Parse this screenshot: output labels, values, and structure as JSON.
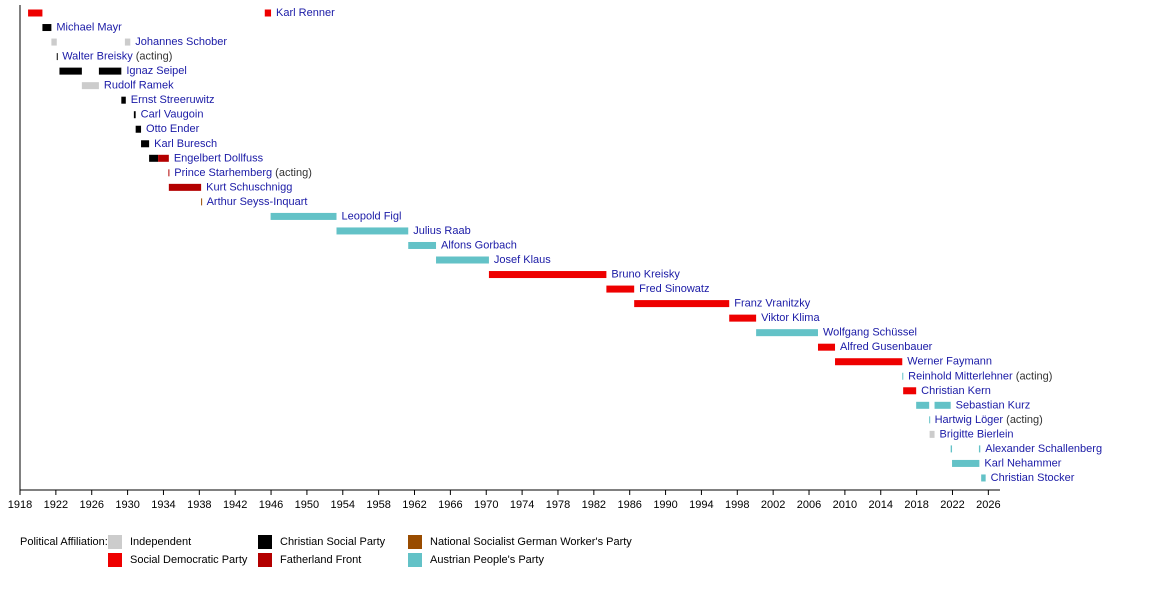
{
  "chart_data": {
    "type": "timeline",
    "xlim": [
      1918,
      2027.3
    ],
    "xticks": [
      1918,
      1922,
      1926,
      1930,
      1934,
      1938,
      1942,
      1946,
      1950,
      1954,
      1958,
      1962,
      1966,
      1970,
      1974,
      1978,
      1982,
      1986,
      1990,
      1994,
      1998,
      2002,
      2006,
      2010,
      2014,
      2018,
      2022,
      2026
    ],
    "legend_title": "Political Affiliation:",
    "parties": [
      {
        "name": "Independent",
        "color": "#cccccc"
      },
      {
        "name": "Social Democratic Party",
        "color": "#ee0000"
      },
      {
        "name": "Christian Social Party",
        "color": "#000000"
      },
      {
        "name": "Fatherland Front",
        "color": "#b30000"
      },
      {
        "name": "National Socialist German Worker's Party",
        "color": "#994c00"
      },
      {
        "name": "Austrian People's Party",
        "color": "#63c2c7"
      }
    ],
    "rows": [
      {
        "name": "Karl Renner",
        "terms": [
          {
            "start": 1918.9,
            "end": 1920.5,
            "party": 1
          },
          {
            "start": 1945.3,
            "end": 1946.0,
            "party": 1
          }
        ]
      },
      {
        "name": "Michael Mayr",
        "terms": [
          {
            "start": 1920.5,
            "end": 1921.5,
            "party": 2
          }
        ]
      },
      {
        "name": "Johannes Schober",
        "terms": [
          {
            "start": 1921.5,
            "end": 1922.1,
            "party": 0
          },
          {
            "start": 1929.7,
            "end": 1930.3,
            "party": 0
          }
        ]
      },
      {
        "name": "Walter Breisky",
        "note": "(acting)",
        "terms": [
          {
            "start": 1922.1,
            "end": 1922.15,
            "party": 2
          }
        ]
      },
      {
        "name": "Ignaz Seipel",
        "terms": [
          {
            "start": 1922.4,
            "end": 1924.9,
            "party": 2
          },
          {
            "start": 1926.8,
            "end": 1929.3,
            "party": 2
          }
        ]
      },
      {
        "name": "Rudolf Ramek",
        "terms": [
          {
            "start": 1924.9,
            "end": 1926.8,
            "party": 0
          }
        ]
      },
      {
        "name": "Ernst Streeruwitz",
        "terms": [
          {
            "start": 1929.3,
            "end": 1929.8,
            "party": 2
          }
        ]
      },
      {
        "name": "Carl Vaugoin",
        "terms": [
          {
            "start": 1930.7,
            "end": 1930.9,
            "party": 2
          }
        ]
      },
      {
        "name": "Otto Ender",
        "terms": [
          {
            "start": 1930.9,
            "end": 1931.5,
            "party": 2
          }
        ]
      },
      {
        "name": "Karl Buresch",
        "terms": [
          {
            "start": 1931.5,
            "end": 1932.4,
            "party": 2
          }
        ]
      },
      {
        "name": "Engelbert Dollfuss",
        "terms": [
          {
            "start": 1932.4,
            "end": 1933.4,
            "party": 2
          },
          {
            "start": 1933.4,
            "end": 1934.6,
            "party": 3
          }
        ]
      },
      {
        "name": "Prince Starhemberg",
        "note": "(acting)",
        "terms": [
          {
            "start": 1934.55,
            "end": 1934.65,
            "party": 3
          }
        ]
      },
      {
        "name": "Kurt Schuschnigg",
        "terms": [
          {
            "start": 1934.6,
            "end": 1938.2,
            "party": 3
          }
        ]
      },
      {
        "name": "Arthur Seyss-Inquart",
        "terms": [
          {
            "start": 1938.2,
            "end": 1938.25,
            "party": 4
          }
        ]
      },
      {
        "name": "Leopold Figl",
        "terms": [
          {
            "start": 1945.95,
            "end": 1953.3,
            "party": 5
          }
        ]
      },
      {
        "name": "Julius Raab",
        "terms": [
          {
            "start": 1953.3,
            "end": 1961.3,
            "party": 5
          }
        ]
      },
      {
        "name": "Alfons Gorbach",
        "terms": [
          {
            "start": 1961.3,
            "end": 1964.4,
            "party": 5
          }
        ]
      },
      {
        "name": "Josef Klaus",
        "terms": [
          {
            "start": 1964.4,
            "end": 1970.3,
            "party": 5
          }
        ]
      },
      {
        "name": "Bruno Kreisky",
        "terms": [
          {
            "start": 1970.3,
            "end": 1983.4,
            "party": 1
          }
        ]
      },
      {
        "name": "Fred Sinowatz",
        "terms": [
          {
            "start": 1983.4,
            "end": 1986.5,
            "party": 1
          }
        ]
      },
      {
        "name": "Franz Vranitzky",
        "terms": [
          {
            "start": 1986.5,
            "end": 1997.1,
            "party": 1
          }
        ]
      },
      {
        "name": "Viktor Klima",
        "terms": [
          {
            "start": 1997.1,
            "end": 2000.1,
            "party": 1
          }
        ]
      },
      {
        "name": "Wolfgang Schüssel",
        "terms": [
          {
            "start": 2000.1,
            "end": 2007.0,
            "party": 5
          }
        ]
      },
      {
        "name": "Alfred Gusenbauer",
        "terms": [
          {
            "start": 2007.0,
            "end": 2008.9,
            "party": 1
          }
        ]
      },
      {
        "name": "Werner Faymann",
        "terms": [
          {
            "start": 2008.9,
            "end": 2016.4,
            "party": 1
          }
        ]
      },
      {
        "name": "Reinhold Mitterlehner",
        "note": "(acting)",
        "terms": [
          {
            "start": 2016.4,
            "end": 2016.5,
            "party": 5
          }
        ]
      },
      {
        "name": "Christian Kern",
        "terms": [
          {
            "start": 2016.5,
            "end": 2017.95,
            "party": 1
          }
        ]
      },
      {
        "name": "Sebastian Kurz",
        "terms": [
          {
            "start": 2017.95,
            "end": 2019.4,
            "party": 5
          },
          {
            "start": 2020.0,
            "end": 2021.8,
            "party": 5
          }
        ]
      },
      {
        "name": "Hartwig Löger",
        "note": "(acting)",
        "terms": [
          {
            "start": 2019.4,
            "end": 2019.45,
            "party": 5
          }
        ]
      },
      {
        "name": "Brigitte Bierlein",
        "terms": [
          {
            "start": 2019.45,
            "end": 2020.0,
            "party": 0
          }
        ]
      },
      {
        "name": "Alexander Schallenberg",
        "terms": [
          {
            "start": 2021.8,
            "end": 2021.95,
            "party": 5
          },
          {
            "start": 2024.95,
            "end": 2025.1,
            "party": 5
          }
        ]
      },
      {
        "name": "Karl Nehammer",
        "terms": [
          {
            "start": 2021.95,
            "end": 2025.0,
            "party": 5
          }
        ]
      },
      {
        "name": "Christian Stocker",
        "terms": [
          {
            "start": 2025.2,
            "end": 2025.7,
            "party": 5
          }
        ]
      }
    ]
  }
}
